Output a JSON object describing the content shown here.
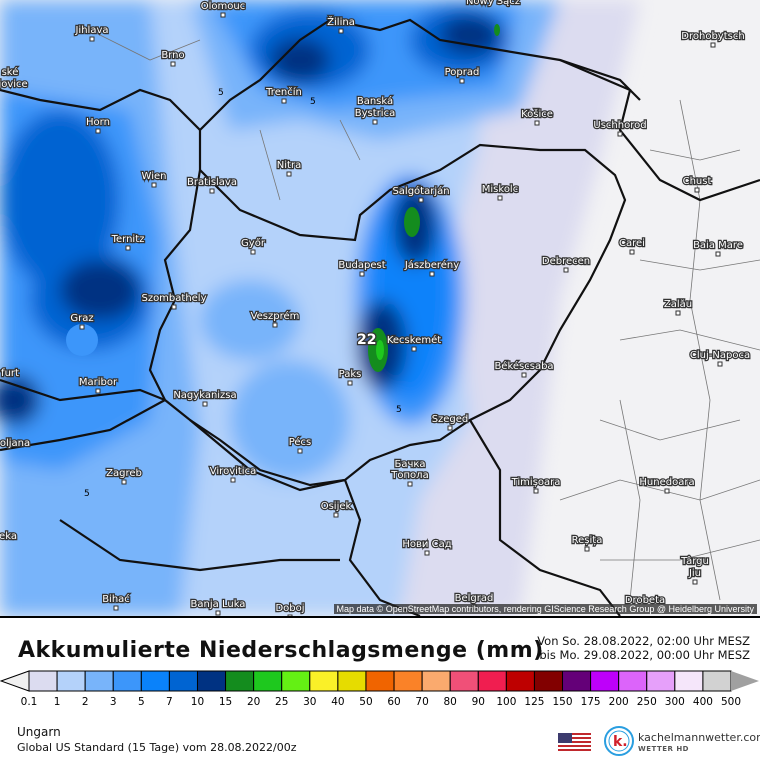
{
  "map": {
    "region": "Ungarn",
    "attribution": "Map data © OpenStreetMap contributors, rendering GIScience Research Group @ Heidelberg University",
    "max_label": "22",
    "contour_label": "5",
    "cities": [
      "Olomouc",
      "Nowy Sącz",
      "Jihlava",
      "Brno",
      "Žilina",
      "Drohobytsch",
      "ské",
      "ějovice",
      "Trenčín",
      "Poprad",
      "Banská",
      "Bystrica",
      "Košice",
      "Horn",
      "Uschhorod",
      "Nitra",
      "Wien",
      "Bratislava",
      "Salgótarján",
      "Miskolc",
      "Chust",
      "Ternitz",
      "Győr",
      "Carei",
      "Baia Mare",
      "Budapest",
      "Jászberény",
      "Debrecen",
      "Szombathely",
      "Zalău",
      "Graz",
      "Veszprém",
      "Kecskemét",
      "Cluj-Napoca",
      "furt",
      "Maribor",
      "Paks",
      "Békéscsaba",
      "Nagykanizsa",
      "Szeged",
      "Pécs",
      "oljana",
      "Virovitica",
      "Бачка",
      "Топола",
      "Zagreb",
      "Timișoara",
      "Hunedoara",
      "Osijek",
      "eka",
      "Reșița",
      "Нови Сад",
      "Târgu",
      "Jiu",
      "Bihać",
      "Banja Luka",
      "Doboj",
      "Belgrad",
      "Drobeta"
    ]
  },
  "header": {
    "title": "Akkumulierte Niederschlagsmenge (mm)",
    "period_from": "Von So. 28.08.2022, 02:00 Uhr MESZ",
    "period_to": "bis Mo. 29.08.2022, 00:00 Uhr MESZ"
  },
  "legend": {
    "under_color": "#f0f0f0",
    "over_color": "#a0a0a0",
    "ticks": [
      "0.1",
      "1",
      "2",
      "3",
      "5",
      "7",
      "10",
      "15",
      "20",
      "25",
      "30",
      "40",
      "50",
      "60",
      "70",
      "80",
      "90",
      "100",
      "125",
      "150",
      "175",
      "200",
      "250",
      "300",
      "400",
      "500"
    ],
    "colors": [
      "#dcdcf0",
      "#b4d2fa",
      "#78b4fa",
      "#3c96fa",
      "#0a82fa",
      "#0064d2",
      "#003282",
      "#148c1e",
      "#1ec81e",
      "#64f014",
      "#faf028",
      "#e6dc00",
      "#f06400",
      "#fa8228",
      "#faaa6e",
      "#f05078",
      "#f01e50",
      "#be0000",
      "#820000",
      "#640078",
      "#be00fa",
      "#dc64fa",
      "#e6a0fa",
      "#f5e6fa",
      "#d2d2d2"
    ]
  },
  "footer": {
    "region": "Ungarn",
    "model": "Global US Standard (15 Tage) vom  28.08.2022/00z",
    "brand": "kachelmannwetter.com",
    "brand_sub": "WETTER HD",
    "logo_letter": "k."
  }
}
